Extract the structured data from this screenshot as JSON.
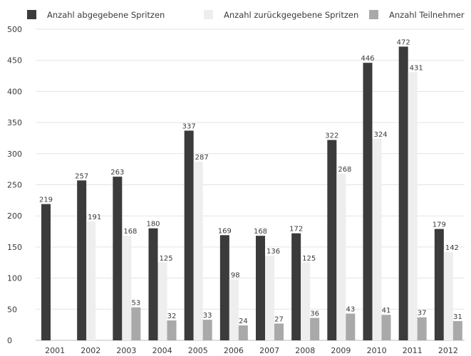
{
  "chart_data": {
    "type": "bar",
    "categories": [
      "2001",
      "2002",
      "2003",
      "2004",
      "2005",
      "2006",
      "2007",
      "2008",
      "2009",
      "2010",
      "2011",
      "2012"
    ],
    "series": [
      {
        "name": "Anzahl abgegebene Spritzen",
        "color": "#3b3b3b",
        "values": [
          219,
          257,
          263,
          180,
          337,
          169,
          168,
          172,
          322,
          446,
          472,
          179
        ]
      },
      {
        "name": "Anzahl zurückgegebene Spritzen",
        "color": "#eeeeee",
        "values": [
          null,
          191,
          168,
          125,
          287,
          98,
          136,
          125,
          268,
          324,
          431,
          142
        ]
      },
      {
        "name": "Anzahl Teilnehmer",
        "color": "#a9a9a9",
        "values": [
          null,
          null,
          53,
          32,
          33,
          24,
          27,
          36,
          43,
          41,
          37,
          31
        ]
      }
    ],
    "ylim": [
      0,
      500
    ],
    "yticks": [
      0,
      50,
      100,
      150,
      200,
      250,
      300,
      350,
      400,
      450,
      500
    ],
    "grid": true,
    "legend_position": "top"
  }
}
